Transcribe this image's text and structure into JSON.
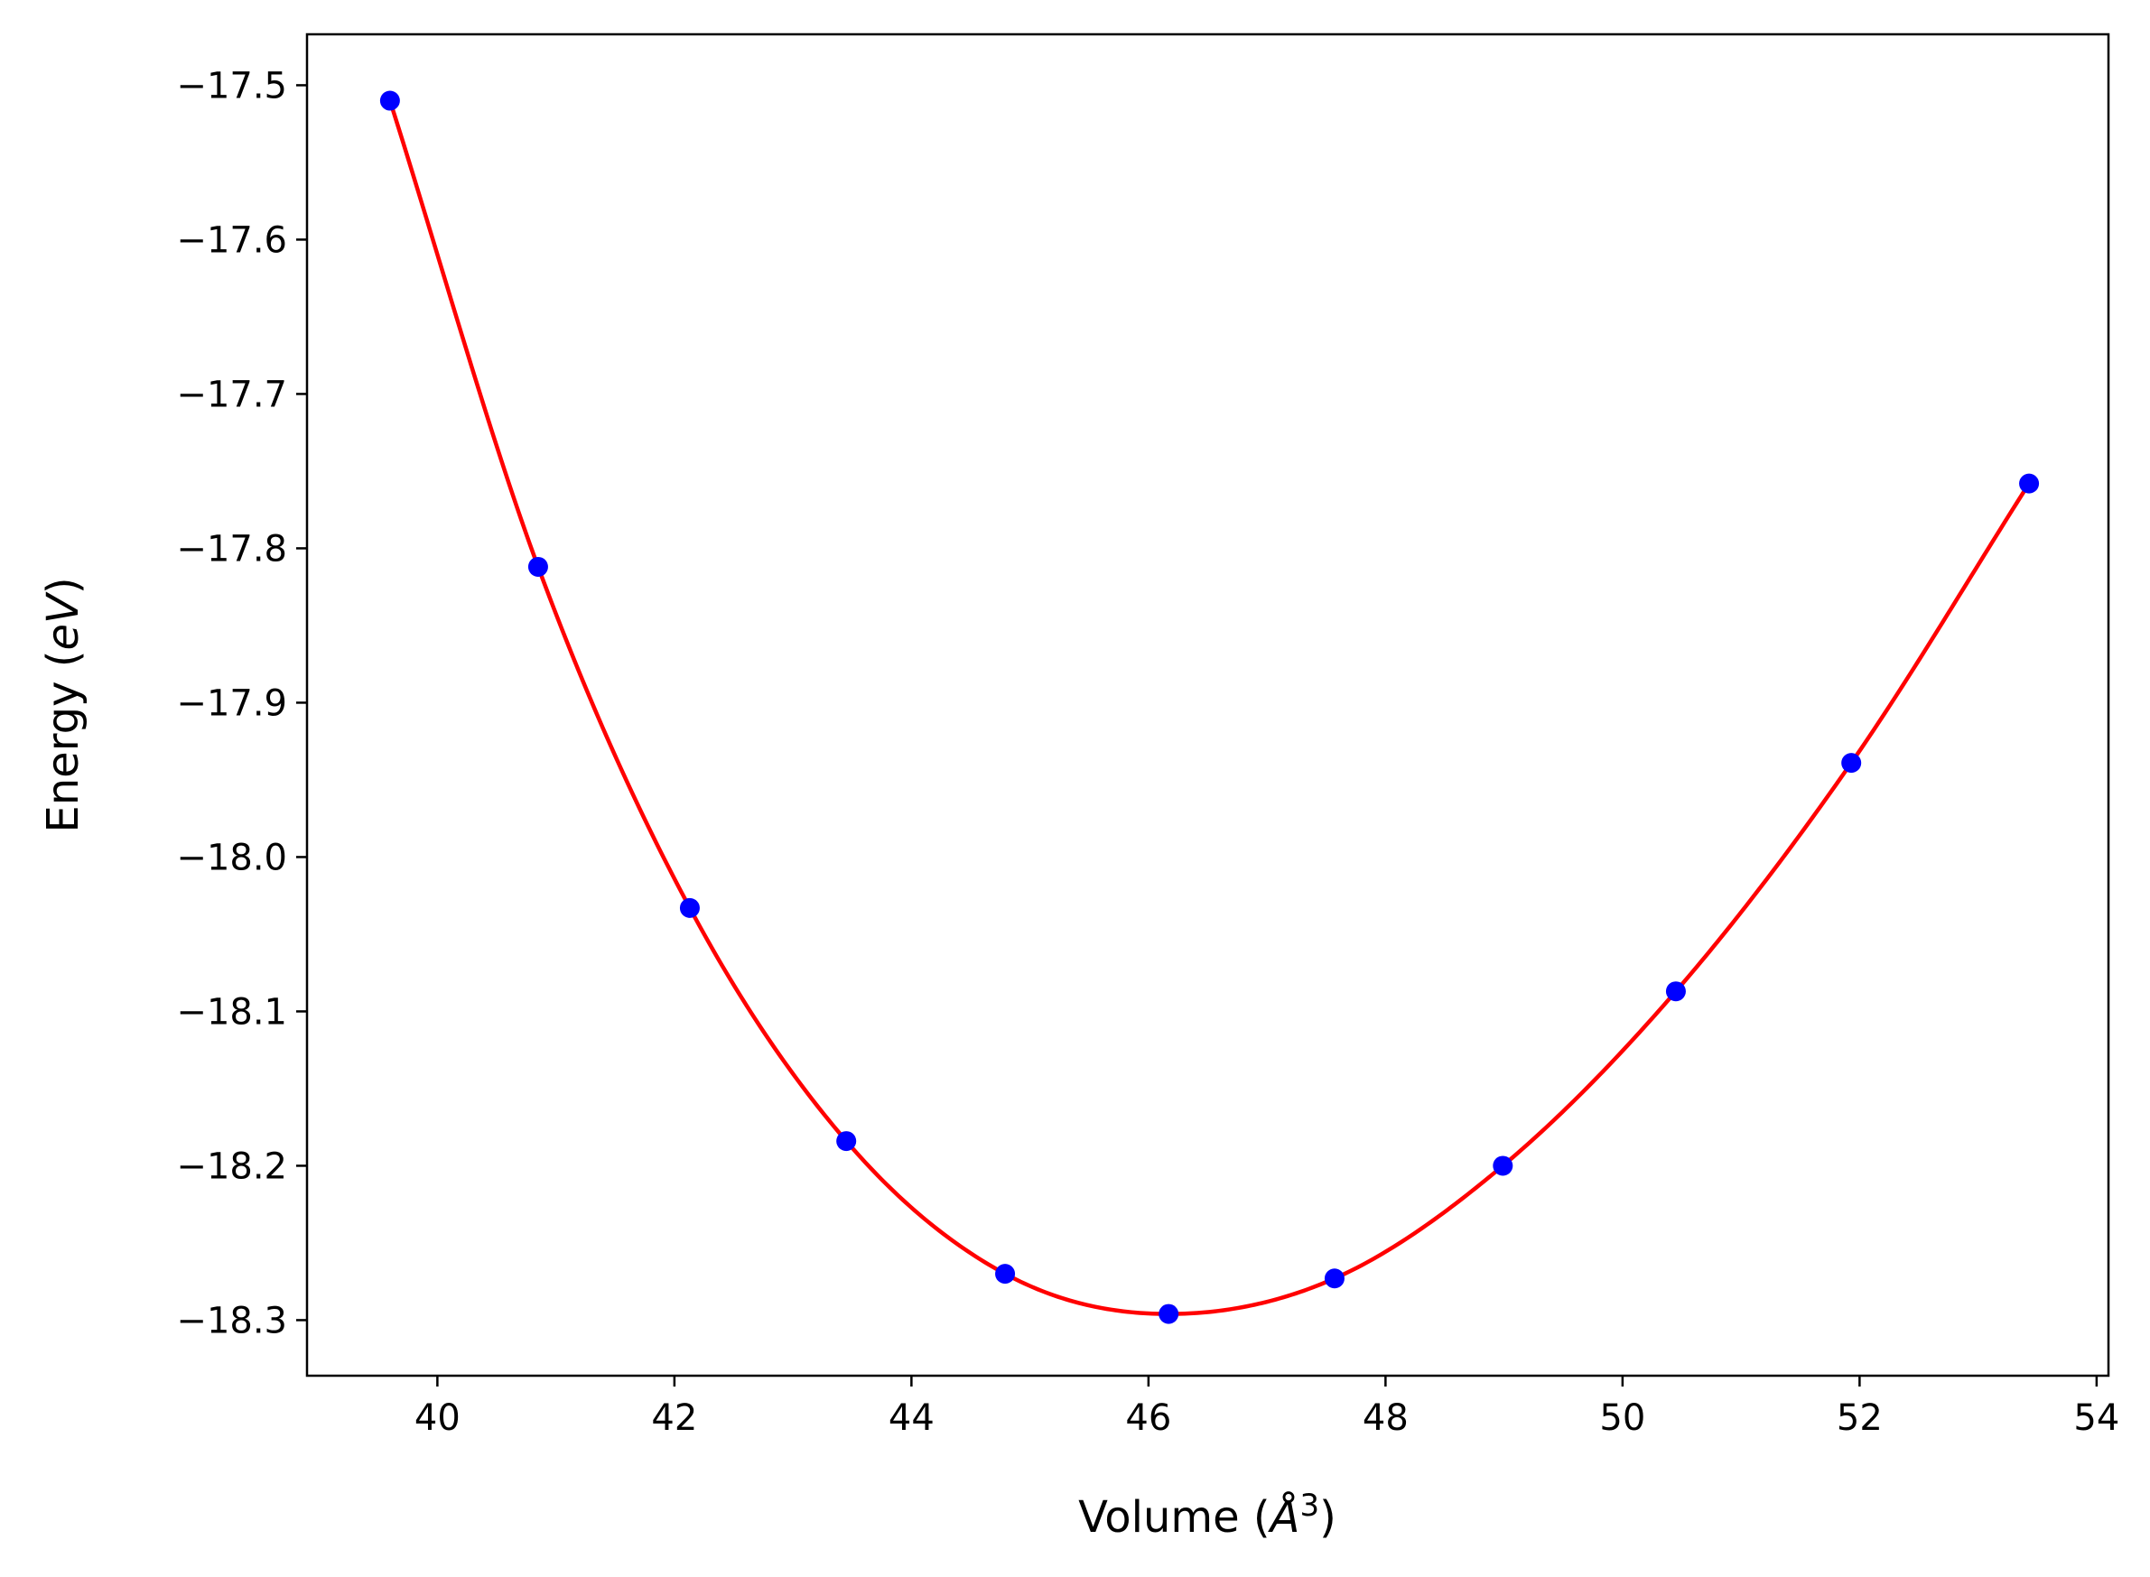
{
  "chart_data": {
    "type": "scatter",
    "title": "",
    "xlabel": {
      "prefix": "Volume (",
      "unit_letter": "Å",
      "unit_power": "3",
      "suffix": ")"
    },
    "ylabel": {
      "prefix": "Energy (",
      "unit": "eV",
      "suffix": ")"
    },
    "xlim": [
      38.9,
      54.1
    ],
    "ylim": [
      -18.336,
      -17.467
    ],
    "xticks": [
      40,
      42,
      44,
      46,
      48,
      50,
      52,
      54
    ],
    "yticks": [
      -17.5,
      -17.6,
      -17.7,
      -17.8,
      -17.9,
      -18.0,
      -18.1,
      -18.2,
      -18.3
    ],
    "ytick_labels": [
      "−17.5",
      "−17.6",
      "−17.7",
      "−17.8",
      "−17.9",
      "−18.0",
      "−18.1",
      "−18.2",
      "−18.3"
    ],
    "xtick_labels": [
      "40",
      "42",
      "44",
      "46",
      "48",
      "50",
      "52",
      "54"
    ],
    "grid": false,
    "series": [
      {
        "kind": "points",
        "color": "#0000ff",
        "x": [
          39.6,
          40.85,
          42.13,
          43.45,
          44.79,
          46.17,
          47.57,
          48.99,
          50.45,
          51.93,
          53.43
        ],
        "y": [
          -17.51,
          -17.812,
          -18.033,
          -18.184,
          -18.27,
          -18.296,
          -18.273,
          -18.2,
          -18.087,
          -17.939,
          -17.758
        ]
      },
      {
        "kind": "fit-curve",
        "color": "#ff0000",
        "x_range": [
          39.6,
          53.43
        ]
      }
    ]
  }
}
